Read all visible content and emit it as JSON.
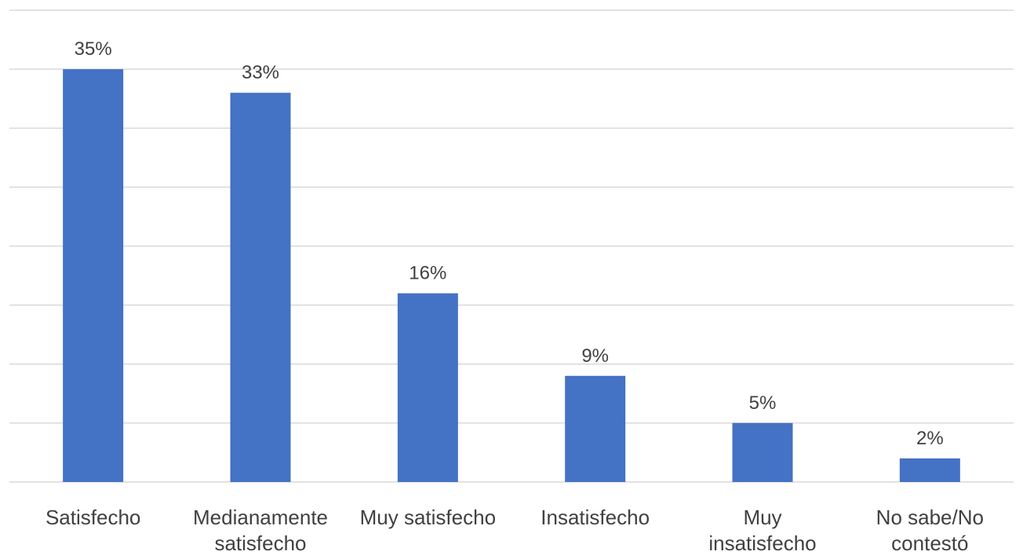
{
  "chart_data": {
    "type": "bar",
    "categories": [
      "Satisfecho",
      "Medianamente satisfecho",
      "Muy satisfecho",
      "Insatisfecho",
      "Muy insatisfecho",
      "No sabe/No contestó"
    ],
    "category_lines": [
      [
        "Satisfecho"
      ],
      [
        "Medianamente",
        "satisfecho"
      ],
      [
        "Muy satisfecho"
      ],
      [
        "Insatisfecho"
      ],
      [
        "Muy",
        "insatisfecho"
      ],
      [
        "No sabe/No",
        "contestó"
      ]
    ],
    "values": [
      35,
      33,
      16,
      9,
      5,
      2
    ],
    "data_labels": [
      "35%",
      "33%",
      "16%",
      "9%",
      "5%",
      "2%"
    ],
    "unit": "%",
    "ylim": [
      0,
      40
    ],
    "ytick_step": 5,
    "y_ticks_visible": false,
    "grid": true,
    "legend": "none",
    "bar_color": "#4472c4",
    "grid_color": "#d9d9d9",
    "text_color": "#404040"
  }
}
